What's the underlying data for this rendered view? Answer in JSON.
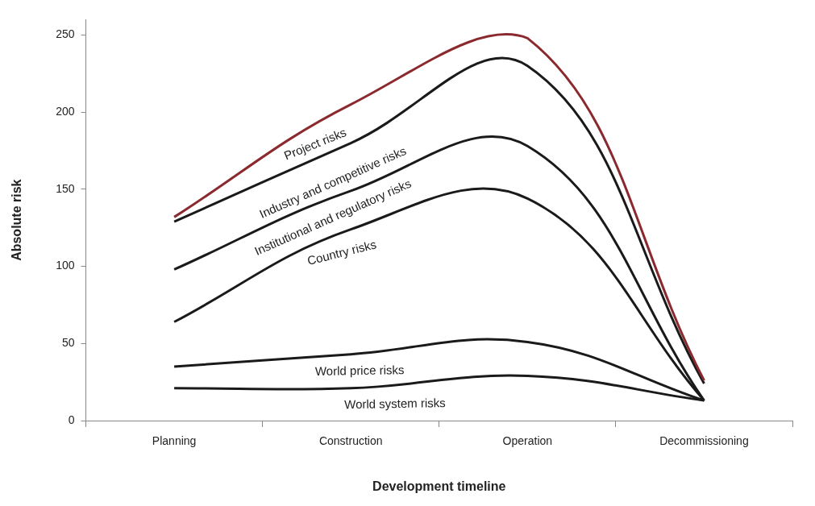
{
  "chart_data": {
    "type": "line",
    "xlabel": "Development timeline",
    "ylabel": "Absolute risk",
    "categories": [
      "Planning",
      "Construction",
      "Operation",
      "Decommissioning"
    ],
    "ylim": [
      0,
      260
    ],
    "yticks": [
      0,
      50,
      100,
      150,
      200,
      250
    ],
    "grid": false,
    "legend": false,
    "marker": "none",
    "line_style": "solid",
    "series": [
      {
        "name": "Project risks",
        "color": "#8b2a2e",
        "values": [
          132,
          205,
          248,
          26
        ]
      },
      {
        "name": "Industry and competitive risks",
        "color": "#1a1a1a",
        "values": [
          129,
          180,
          230,
          24
        ]
      },
      {
        "name": "Institutional and regulatory risks",
        "color": "#1a1a1a",
        "values": [
          98,
          149,
          178,
          13
        ]
      },
      {
        "name": "Country risks",
        "color": "#1a1a1a",
        "values": [
          64,
          124,
          144,
          13
        ]
      },
      {
        "name": "World price risks",
        "color": "#1a1a1a",
        "values": [
          35,
          43,
          51,
          13
        ]
      },
      {
        "name": "World system risks",
        "color": "#1a1a1a",
        "values": [
          21,
          21,
          29,
          13
        ]
      }
    ]
  }
}
